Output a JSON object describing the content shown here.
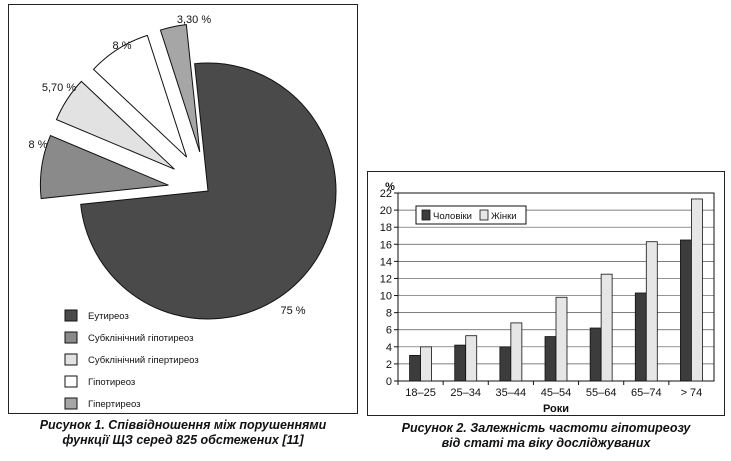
{
  "charts": {
    "pie": {
      "type": "pie",
      "slices": [
        {
          "label": "Еутиреоз",
          "value": 75,
          "value_label": "75 %",
          "color": "#4a4a4a"
        },
        {
          "label": "Субклінічний гіпотиреоз",
          "value": 8,
          "value_label": "8 %",
          "color": "#8a8a8a"
        },
        {
          "label": "Субклінічний гіпертиреоз",
          "value": 5.7,
          "value_label": "5,70 %",
          "color": "#e2e2e2"
        },
        {
          "label": "Гіпотиреоз",
          "value": 8,
          "value_label": "8 %",
          "color": "#ffffff"
        },
        {
          "label": "Гіпертиреоз",
          "value": 3.3,
          "value_label": "3,30 %",
          "color": "#a6a6a6"
        }
      ],
      "caption_line1": "Рисунок 1. Співвідношення між порушеннями",
      "caption_line2": "функції ЩЗ серед 825 обстежених [11]"
    },
    "bar": {
      "type": "bar",
      "categories": [
        "18–25",
        "25–34",
        "35–44",
        "45–54",
        "55–64",
        "65–74",
        "> 74"
      ],
      "series": [
        {
          "name": "Чоловіки",
          "values": [
            3,
            4.2,
            4,
            5.2,
            6.2,
            10.3,
            16.5
          ],
          "color": "#3c3c3c"
        },
        {
          "name": "Жінки",
          "values": [
            4,
            5.3,
            6.8,
            9.8,
            12.5,
            16.3,
            21.3
          ],
          "color": "#e6e6e6"
        }
      ],
      "ylabel": "%",
      "xlabel": "Роки",
      "ylim": [
        0,
        22
      ],
      "yticks": [
        0,
        2,
        4,
        6,
        8,
        10,
        12,
        14,
        16,
        18,
        20,
        22
      ],
      "legend_position": "top-left",
      "caption_line1": "Рисунок 2. Залежність частоти гіпотиреозу",
      "caption_line2": "від статі та віку досліджуваних"
    }
  }
}
